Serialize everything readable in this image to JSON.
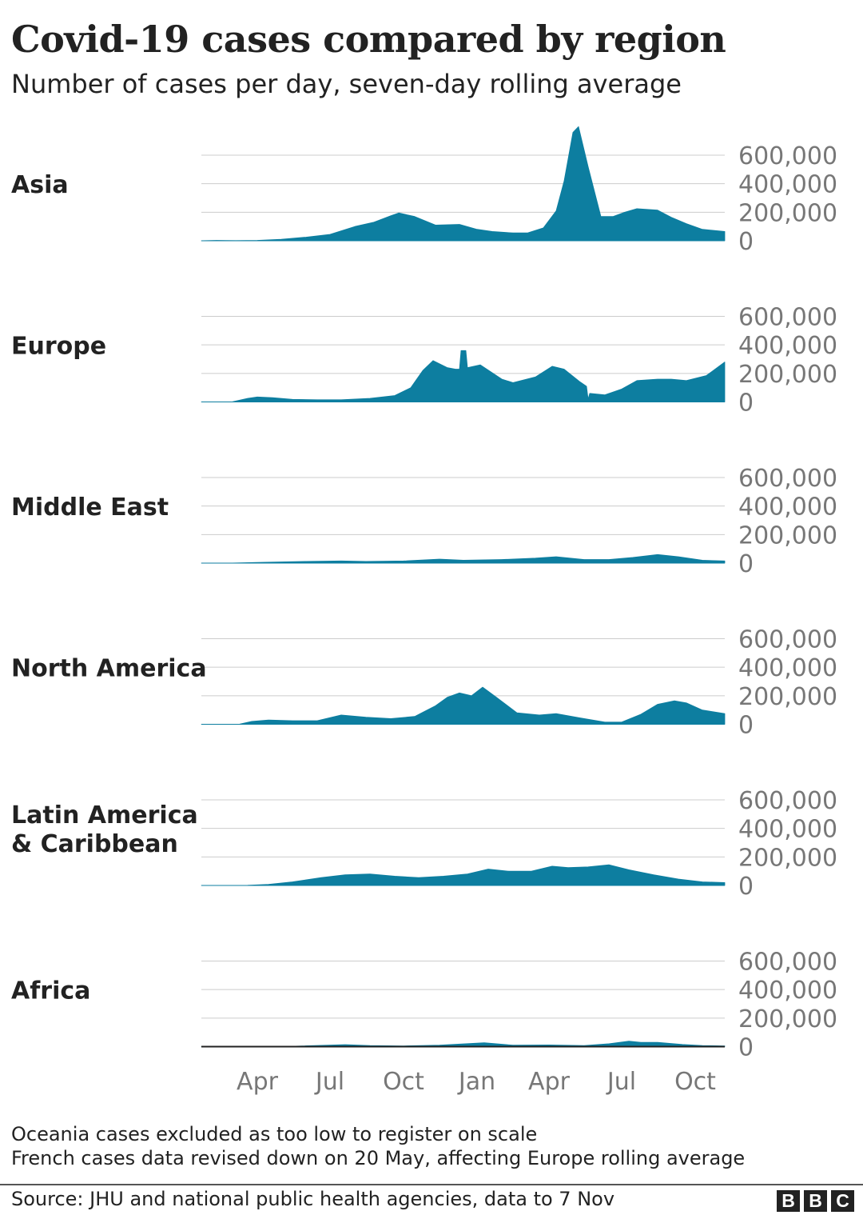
{
  "header": {
    "title": "Covid-19 cases compared by region",
    "subtitle": "Number of cases per day, seven-day rolling average"
  },
  "notes": [
    "Oceania cases excluded as too low to register on scale",
    "French cases data revised down on 20 May, affecting Europe rolling average"
  ],
  "footer": {
    "source": "Source: JHU and national public health agencies, data to 7 Nov",
    "logo_letters": [
      "B",
      "B",
      "C"
    ]
  },
  "colors": {
    "fill": "#0d7ea0",
    "grid": "#cccccc",
    "tick_text": "#777777",
    "label_text": "#222222"
  },
  "chart_data": {
    "type": "area",
    "x_range": [
      "2020-01-22",
      "2021-11-07"
    ],
    "x_ticks": [
      {
        "date": "2020-04-01",
        "label": "Apr"
      },
      {
        "date": "2020-07-01",
        "label": "Jul"
      },
      {
        "date": "2020-10-01",
        "label": "Oct"
      },
      {
        "date": "2021-01-01",
        "label": "Jan"
      },
      {
        "date": "2021-04-01",
        "label": "Apr"
      },
      {
        "date": "2021-07-01",
        "label": "Jul"
      },
      {
        "date": "2021-10-01",
        "label": "Oct"
      }
    ],
    "ylim": [
      0,
      600000
    ],
    "y_ticks": [
      {
        "value": 600000,
        "label": "600,000"
      },
      {
        "value": 400000,
        "label": "400,000"
      },
      {
        "value": 200000,
        "label": "200,000"
      },
      {
        "value": 0,
        "label": "0"
      }
    ],
    "series": [
      {
        "name": "Asia",
        "points": [
          [
            "2020-01-22",
            0
          ],
          [
            "2020-02-10",
            3000
          ],
          [
            "2020-02-20",
            1500
          ],
          [
            "2020-03-05",
            1000
          ],
          [
            "2020-04-01",
            3000
          ],
          [
            "2020-05-01",
            10000
          ],
          [
            "2020-06-01",
            25000
          ],
          [
            "2020-07-01",
            45000
          ],
          [
            "2020-08-01",
            100000
          ],
          [
            "2020-08-25",
            130000
          ],
          [
            "2020-09-15",
            175000
          ],
          [
            "2020-09-25",
            195000
          ],
          [
            "2020-10-15",
            170000
          ],
          [
            "2020-11-10",
            110000
          ],
          [
            "2020-12-10",
            115000
          ],
          [
            "2021-01-01",
            80000
          ],
          [
            "2021-01-20",
            65000
          ],
          [
            "2021-02-15",
            55000
          ],
          [
            "2021-03-05",
            55000
          ],
          [
            "2021-03-25",
            90000
          ],
          [
            "2021-04-10",
            210000
          ],
          [
            "2021-04-20",
            420000
          ],
          [
            "2021-05-01",
            760000
          ],
          [
            "2021-05-08",
            800000
          ],
          [
            "2021-05-20",
            520000
          ],
          [
            "2021-06-05",
            170000
          ],
          [
            "2021-06-20",
            170000
          ],
          [
            "2021-07-05",
            200000
          ],
          [
            "2021-07-20",
            225000
          ],
          [
            "2021-08-15",
            215000
          ],
          [
            "2021-09-01",
            165000
          ],
          [
            "2021-09-20",
            120000
          ],
          [
            "2021-10-10",
            80000
          ],
          [
            "2021-11-07",
            65000
          ]
        ]
      },
      {
        "name": "Europe",
        "points": [
          [
            "2020-01-22",
            0
          ],
          [
            "2020-03-01",
            1000
          ],
          [
            "2020-03-20",
            25000
          ],
          [
            "2020-04-01",
            35000
          ],
          [
            "2020-04-20",
            30000
          ],
          [
            "2020-05-15",
            18000
          ],
          [
            "2020-06-15",
            15000
          ],
          [
            "2020-07-15",
            15000
          ],
          [
            "2020-08-20",
            25000
          ],
          [
            "2020-09-20",
            45000
          ],
          [
            "2020-10-10",
            100000
          ],
          [
            "2020-10-25",
            220000
          ],
          [
            "2020-11-07",
            290000
          ],
          [
            "2020-11-25",
            240000
          ],
          [
            "2020-12-05",
            230000
          ],
          [
            "2020-12-10",
            230000
          ],
          [
            "2020-12-12",
            360000
          ],
          [
            "2020-12-18",
            360000
          ],
          [
            "2020-12-20",
            240000
          ],
          [
            "2021-01-05",
            260000
          ],
          [
            "2021-02-01",
            160000
          ],
          [
            "2021-02-15",
            135000
          ],
          [
            "2021-03-15",
            175000
          ],
          [
            "2021-04-05",
            250000
          ],
          [
            "2021-04-20",
            230000
          ],
          [
            "2021-05-10",
            140000
          ],
          [
            "2021-05-18",
            110000
          ],
          [
            "2021-05-20",
            20000
          ],
          [
            "2021-05-22",
            60000
          ],
          [
            "2021-06-10",
            50000
          ],
          [
            "2021-07-01",
            90000
          ],
          [
            "2021-07-20",
            150000
          ],
          [
            "2021-08-15",
            160000
          ],
          [
            "2021-09-01",
            160000
          ],
          [
            "2021-09-20",
            150000
          ],
          [
            "2021-10-15",
            185000
          ],
          [
            "2021-11-07",
            280000
          ]
        ]
      },
      {
        "name": "Middle East",
        "points": [
          [
            "2020-01-22",
            0
          ],
          [
            "2020-03-01",
            500
          ],
          [
            "2020-04-01",
            5000
          ],
          [
            "2020-06-01",
            12000
          ],
          [
            "2020-07-15",
            15000
          ],
          [
            "2020-08-15",
            12000
          ],
          [
            "2020-10-01",
            15000
          ],
          [
            "2020-11-15",
            28000
          ],
          [
            "2020-12-15",
            20000
          ],
          [
            "2021-02-01",
            25000
          ],
          [
            "2021-03-15",
            35000
          ],
          [
            "2021-04-10",
            45000
          ],
          [
            "2021-05-15",
            25000
          ],
          [
            "2021-06-15",
            25000
          ],
          [
            "2021-07-15",
            40000
          ],
          [
            "2021-08-15",
            60000
          ],
          [
            "2021-09-10",
            45000
          ],
          [
            "2021-10-10",
            20000
          ],
          [
            "2021-11-07",
            15000
          ]
        ]
      },
      {
        "name": "North America",
        "points": [
          [
            "2020-01-22",
            0
          ],
          [
            "2020-03-10",
            1000
          ],
          [
            "2020-03-25",
            20000
          ],
          [
            "2020-04-15",
            30000
          ],
          [
            "2020-05-15",
            25000
          ],
          [
            "2020-06-15",
            25000
          ],
          [
            "2020-07-15",
            65000
          ],
          [
            "2020-08-15",
            50000
          ],
          [
            "2020-09-15",
            40000
          ],
          [
            "2020-10-15",
            55000
          ],
          [
            "2020-11-10",
            130000
          ],
          [
            "2020-11-25",
            190000
          ],
          [
            "2020-12-10",
            220000
          ],
          [
            "2020-12-25",
            200000
          ],
          [
            "2021-01-08",
            260000
          ],
          [
            "2021-01-25",
            190000
          ],
          [
            "2021-02-20",
            80000
          ],
          [
            "2021-03-20",
            65000
          ],
          [
            "2021-04-10",
            75000
          ],
          [
            "2021-05-10",
            45000
          ],
          [
            "2021-06-10",
            15000
          ],
          [
            "2021-07-01",
            15000
          ],
          [
            "2021-07-25",
            70000
          ],
          [
            "2021-08-15",
            140000
          ],
          [
            "2021-09-05",
            165000
          ],
          [
            "2021-09-20",
            150000
          ],
          [
            "2021-10-10",
            100000
          ],
          [
            "2021-11-07",
            75000
          ]
        ]
      },
      {
        "name": "Latin America & Caribbean",
        "points": [
          [
            "2020-01-22",
            0
          ],
          [
            "2020-03-20",
            1000
          ],
          [
            "2020-04-15",
            8000
          ],
          [
            "2020-05-15",
            25000
          ],
          [
            "2020-06-20",
            55000
          ],
          [
            "2020-07-20",
            75000
          ],
          [
            "2020-08-20",
            80000
          ],
          [
            "2020-09-20",
            65000
          ],
          [
            "2020-10-20",
            55000
          ],
          [
            "2020-11-20",
            65000
          ],
          [
            "2020-12-20",
            80000
          ],
          [
            "2021-01-15",
            115000
          ],
          [
            "2021-02-10",
            100000
          ],
          [
            "2021-03-10",
            100000
          ],
          [
            "2021-04-05",
            135000
          ],
          [
            "2021-04-25",
            125000
          ],
          [
            "2021-05-20",
            130000
          ],
          [
            "2021-06-15",
            145000
          ],
          [
            "2021-07-10",
            110000
          ],
          [
            "2021-08-10",
            75000
          ],
          [
            "2021-09-10",
            45000
          ],
          [
            "2021-10-10",
            25000
          ],
          [
            "2021-11-07",
            20000
          ]
        ]
      },
      {
        "name": "Africa",
        "points": [
          [
            "2020-01-22",
            0
          ],
          [
            "2020-04-01",
            1000
          ],
          [
            "2020-05-15",
            3000
          ],
          [
            "2020-07-20",
            14000
          ],
          [
            "2020-08-20",
            8000
          ],
          [
            "2020-10-01",
            5000
          ],
          [
            "2020-11-15",
            10000
          ],
          [
            "2021-01-10",
            27000
          ],
          [
            "2021-02-15",
            10000
          ],
          [
            "2021-04-01",
            12000
          ],
          [
            "2021-05-15",
            8000
          ],
          [
            "2021-06-15",
            20000
          ],
          [
            "2021-07-10",
            38000
          ],
          [
            "2021-07-25",
            30000
          ],
          [
            "2021-08-15",
            30000
          ],
          [
            "2021-09-15",
            15000
          ],
          [
            "2021-10-10",
            8000
          ],
          [
            "2021-11-07",
            5000
          ]
        ]
      }
    ]
  }
}
